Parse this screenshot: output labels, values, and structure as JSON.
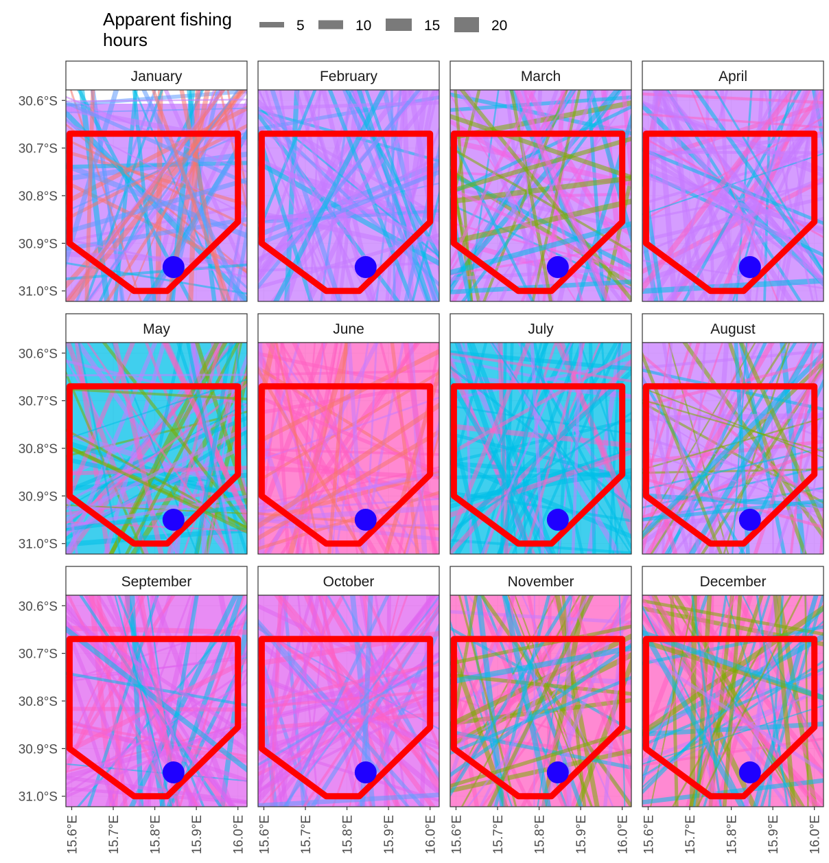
{
  "chart_data": {
    "type": "faceted-map",
    "legend": {
      "title_line1": "Apparent fishing",
      "title_line2": "hours",
      "placement": "top",
      "items": [
        {
          "label": "5",
          "value": 5
        },
        {
          "label": "10",
          "value": 10
        },
        {
          "label": "15",
          "value": 15
        },
        {
          "label": "20",
          "value": 20
        }
      ]
    },
    "panels": [
      {
        "title": "January",
        "mix": [
          "#c77cff",
          "#00bfe8",
          "#f8766d",
          "#619cff"
        ]
      },
      {
        "title": "February",
        "mix": [
          "#c77cff",
          "#00bfe8",
          "#c77cff",
          "#619cff"
        ]
      },
      {
        "title": "March",
        "mix": [
          "#c77cff",
          "#00bfe8",
          "#f564e3",
          "#7cae00"
        ]
      },
      {
        "title": "April",
        "mix": [
          "#c77cff",
          "#00bfe8",
          "#ff61c3",
          "#c77cff"
        ]
      },
      {
        "title": "May",
        "mix": [
          "#00bfe8",
          "#c77cff",
          "#7cae00",
          "#ff61c3"
        ]
      },
      {
        "title": "June",
        "mix": [
          "#ff61c3",
          "#f8766d",
          "#c77cff",
          "#ff61c3"
        ]
      },
      {
        "title": "July",
        "mix": [
          "#00bfe8",
          "#c77cff",
          "#00bfe8",
          "#ff61c3"
        ]
      },
      {
        "title": "August",
        "mix": [
          "#c77cff",
          "#00bfe8",
          "#ff61c3",
          "#7cae00"
        ]
      },
      {
        "title": "September",
        "mix": [
          "#e066f0",
          "#e066f0",
          "#ff61c3",
          "#00bfe8"
        ]
      },
      {
        "title": "October",
        "mix": [
          "#e066f0",
          "#e066f0",
          "#ff61c3",
          "#619cff"
        ]
      },
      {
        "title": "November",
        "mix": [
          "#ff61c3",
          "#c77cff",
          "#00bfe8",
          "#7cae00"
        ]
      },
      {
        "title": "December",
        "mix": [
          "#ff61c3",
          "#c77cff",
          "#00bfe8",
          "#7cae00"
        ]
      }
    ],
    "x_ticks": [
      {
        "label": "15.6°E",
        "value": 15.6
      },
      {
        "label": "15.7°E",
        "value": 15.7
      },
      {
        "label": "15.8°E",
        "value": 15.8
      },
      {
        "label": "15.9°E",
        "value": 15.9
      },
      {
        "label": "16.0°E",
        "value": 16.0
      }
    ],
    "y_ticks": [
      {
        "label": "30.6°S",
        "value": -30.6
      },
      {
        "label": "30.7°S",
        "value": -30.7
      },
      {
        "label": "30.8°S",
        "value": -30.8
      },
      {
        "label": "30.9°S",
        "value": -30.9
      },
      {
        "label": "31.0°S",
        "value": -31.0
      }
    ],
    "x_range": [
      15.586,
      16.022
    ],
    "y_range": [
      -31.022,
      -30.578
    ],
    "boundary_polygon": [
      [
        15.595,
        -30.67
      ],
      [
        16.0,
        -30.67
      ],
      [
        16.0,
        -30.855
      ],
      [
        15.83,
        -31.0
      ],
      [
        15.75,
        -31.0
      ],
      [
        15.595,
        -30.9
      ]
    ],
    "site_point": {
      "lon": 15.845,
      "lat": -30.95
    },
    "colors": {
      "boundary": "#ff0000",
      "site": "#1f00ff",
      "legend_key": "#7a7a7a",
      "strip_bg": "#ffffff",
      "panel_border": "#333333"
    }
  }
}
